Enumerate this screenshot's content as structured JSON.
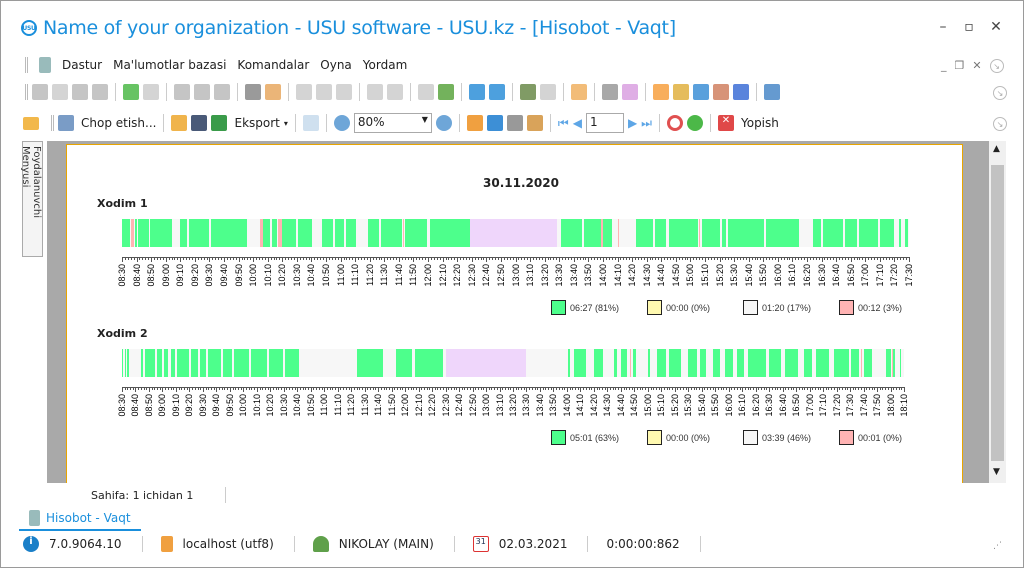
{
  "window": {
    "title": "Name of your organization - USU software - USU.kz - [Hisobot - Vaqt]",
    "logo": "USU"
  },
  "menu": {
    "items": [
      "Dastur",
      "Ma'lumotlar bazasi",
      "Komandalar",
      "Oyna",
      "Yordam"
    ]
  },
  "toolbar1": {
    "icons": [
      "new-record-icon",
      "copy-icon",
      "edit-icon",
      "delete-icon",
      "|",
      "refresh-icon",
      "search-icon",
      "|",
      "filter-icon",
      "filter-clear-icon",
      "filter-check-icon",
      "|",
      "flag-icon",
      "image-icon",
      "|",
      "columns-icon",
      "expand-icon",
      "collapse-icon",
      "|",
      "add-column-icon",
      "note-icon",
      "|",
      "export-table-icon",
      "excel-export-icon",
      "|",
      "close-window-icon",
      "close-all-windows-icon",
      "|",
      "exit-icon",
      "circle-arrow-icon",
      "|",
      "location-pin-icon",
      "|",
      "gear-icon",
      "color-wheel-icon",
      "|",
      "rss-icon",
      "lock-icon",
      "user-key-icon",
      "users-icon",
      "plugin-icon",
      "|",
      "info-icon"
    ]
  },
  "toolbar2": {
    "print_label": "Chop etish...",
    "export_label": "Eksport",
    "zoom_value": "80%",
    "page_value": "1",
    "close_label": "Yopish"
  },
  "side_tab": "Foydalanuvchi Menyusi",
  "report": {
    "date": "30.11.2020",
    "legend_colors": {
      "work": "#4dff8c",
      "idle": "#fff9b0",
      "absent": "#f7f7f7",
      "other": "#ffb3b3",
      "break": "#efd6fb"
    },
    "employees": [
      {
        "name": "Xodim 1",
        "range": [
          "08:30",
          "17:30"
        ],
        "ticks": [
          "08:30",
          "08:40",
          "08:50",
          "09:00",
          "09:10",
          "09:20",
          "09:30",
          "09:40",
          "09:50",
          "10:00",
          "10:10",
          "10:20",
          "10:30",
          "10:40",
          "10:50",
          "11:00",
          "11:10",
          "11:20",
          "11:30",
          "11:40",
          "11:50",
          "12:00",
          "12:10",
          "12:20",
          "12:30",
          "12:40",
          "12:50",
          "13:00",
          "13:10",
          "13:20",
          "13:30",
          "13:40",
          "13:50",
          "14:00",
          "14:10",
          "14:20",
          "14:30",
          "14:40",
          "14:50",
          "15:00",
          "15:10",
          "15:20",
          "15:30",
          "15:40",
          "15:50",
          "16:00",
          "16:10",
          "16:20",
          "16:30",
          "16:40",
          "16:50",
          "17:00",
          "17:10",
          "17:20",
          "17:30"
        ],
        "segments": [
          [
            "08:30",
            "08:33",
            "work"
          ],
          [
            "08:33",
            "08:36",
            "work"
          ],
          [
            "08:36",
            "08:39",
            "other"
          ],
          [
            "08:39",
            "08:41",
            "work"
          ],
          [
            "08:41",
            "08:49",
            "work"
          ],
          [
            "08:49",
            "09:05",
            "work"
          ],
          [
            "09:10",
            "09:15",
            "work"
          ],
          [
            "09:16",
            "09:30",
            "work"
          ],
          [
            "09:31",
            "09:56",
            "work"
          ],
          [
            "10:05",
            "10:07",
            "other"
          ],
          [
            "10:07",
            "10:12",
            "work"
          ],
          [
            "10:13",
            "10:17",
            "work"
          ],
          [
            "10:17",
            "10:20",
            "other"
          ],
          [
            "10:20",
            "10:30",
            "work"
          ],
          [
            "10:31",
            "10:41",
            "work"
          ],
          [
            "10:47",
            "10:55",
            "work"
          ],
          [
            "10:56",
            "11:03",
            "work"
          ],
          [
            "11:04",
            "11:11",
            "work"
          ],
          [
            "11:19",
            "11:27",
            "work"
          ],
          [
            "11:28",
            "11:43",
            "work"
          ],
          [
            "11:43",
            "11:44",
            "other"
          ],
          [
            "11:44",
            "12:00",
            "work"
          ],
          [
            "12:01",
            "12:29",
            "work"
          ],
          [
            "12:29",
            "13:29",
            "break"
          ],
          [
            "13:31",
            "13:46",
            "work"
          ],
          [
            "13:47",
            "13:59",
            "work"
          ],
          [
            "13:59",
            "14:00",
            "other"
          ],
          [
            "14:00",
            "14:07",
            "work"
          ],
          [
            "14:10",
            "14:11",
            "other"
          ],
          [
            "14:23",
            "14:35",
            "work"
          ],
          [
            "14:36",
            "14:44",
            "work"
          ],
          [
            "14:45",
            "15:06",
            "work"
          ],
          [
            "15:06",
            "15:07",
            "other"
          ],
          [
            "15:08",
            "15:21",
            "work"
          ],
          [
            "15:22",
            "15:25",
            "work"
          ],
          [
            "15:26",
            "15:51",
            "work"
          ],
          [
            "15:52",
            "16:15",
            "work"
          ],
          [
            "16:24",
            "16:30",
            "work"
          ],
          [
            "16:31",
            "16:45",
            "work"
          ],
          [
            "16:46",
            "16:55",
            "work"
          ],
          [
            "16:56",
            "17:09",
            "work"
          ],
          [
            "17:10",
            "17:20",
            "work"
          ],
          [
            "17:23",
            "17:25",
            "work"
          ],
          [
            "17:27",
            "17:30",
            "work"
          ]
        ],
        "legend": [
          "06:27 (81%)",
          "00:00 (0%)",
          "01:20 (17%)",
          "00:12 (3%)"
        ]
      },
      {
        "name": "Xodim 2",
        "range": [
          "08:30",
          "18:10"
        ],
        "ticks": [
          "08:30",
          "08:40",
          "08:50",
          "09:00",
          "09:10",
          "09:20",
          "09:30",
          "09:40",
          "09:50",
          "10:00",
          "10:10",
          "10:20",
          "10:30",
          "10:40",
          "10:50",
          "11:00",
          "11:10",
          "11:20",
          "11:30",
          "11:40",
          "11:50",
          "12:00",
          "12:10",
          "12:20",
          "12:30",
          "12:40",
          "12:50",
          "13:00",
          "13:10",
          "13:20",
          "13:30",
          "13:40",
          "13:50",
          "14:00",
          "14:10",
          "14:20",
          "14:30",
          "14:40",
          "14:50",
          "15:00",
          "15:10",
          "15:20",
          "15:30",
          "15:40",
          "15:50",
          "16:00",
          "16:10",
          "16:20",
          "16:30",
          "16:40",
          "16:50",
          "17:00",
          "17:10",
          "17:20",
          "17:30",
          "17:40",
          "17:50",
          "18:00",
          "18:10"
        ],
        "segments": [
          [
            "08:30",
            "08:31",
            "work"
          ],
          [
            "08:32",
            "08:33",
            "work"
          ],
          [
            "08:34",
            "08:36",
            "work"
          ],
          [
            "08:44",
            "08:46",
            "work"
          ],
          [
            "08:47",
            "08:55",
            "work"
          ],
          [
            "08:56",
            "09:00",
            "work"
          ],
          [
            "09:01",
            "09:05",
            "work"
          ],
          [
            "09:06",
            "09:10",
            "work"
          ],
          [
            "09:11",
            "09:20",
            "work"
          ],
          [
            "09:21",
            "09:27",
            "work"
          ],
          [
            "09:28",
            "09:33",
            "work"
          ],
          [
            "09:34",
            "09:44",
            "work"
          ],
          [
            "09:45",
            "09:52",
            "work"
          ],
          [
            "09:53",
            "10:05",
            "work"
          ],
          [
            "10:06",
            "10:18",
            "work"
          ],
          [
            "10:19",
            "10:30",
            "work"
          ],
          [
            "10:31",
            "10:42",
            "work"
          ],
          [
            "11:24",
            "11:44",
            "work"
          ],
          [
            "11:53",
            "12:06",
            "work"
          ],
          [
            "12:07",
            "12:29",
            "work"
          ],
          [
            "12:30",
            "13:30",
            "break"
          ],
          [
            "14:01",
            "14:03",
            "work"
          ],
          [
            "14:05",
            "14:15",
            "work"
          ],
          [
            "14:20",
            "14:27",
            "work"
          ],
          [
            "14:35",
            "14:38",
            "work"
          ],
          [
            "14:40",
            "14:45",
            "work"
          ],
          [
            "14:47",
            "14:48",
            "other"
          ],
          [
            "14:49",
            "14:52",
            "work"
          ],
          [
            "15:00",
            "15:02",
            "work"
          ],
          [
            "15:07",
            "15:14",
            "work"
          ],
          [
            "15:16",
            "15:25",
            "work"
          ],
          [
            "15:30",
            "15:37",
            "work"
          ],
          [
            "15:39",
            "15:44",
            "work"
          ],
          [
            "15:48",
            "15:54",
            "work"
          ],
          [
            "15:57",
            "16:04",
            "work"
          ],
          [
            "16:06",
            "16:12",
            "work"
          ],
          [
            "16:14",
            "16:28",
            "work"
          ],
          [
            "16:30",
            "16:39",
            "work"
          ],
          [
            "16:42",
            "16:52",
            "work"
          ],
          [
            "16:56",
            "17:02",
            "work"
          ],
          [
            "17:05",
            "17:15",
            "work"
          ],
          [
            "17:18",
            "17:30",
            "work"
          ],
          [
            "17:31",
            "17:37",
            "work"
          ],
          [
            "17:38",
            "17:39",
            "other"
          ],
          [
            "17:40",
            "17:47",
            "work"
          ],
          [
            "17:57",
            "18:01",
            "work"
          ],
          [
            "18:01",
            "18:02",
            "other"
          ],
          [
            "18:02",
            "18:04",
            "work"
          ],
          [
            "18:07",
            "18:08",
            "work"
          ]
        ],
        "legend": [
          "05:01 (63%)",
          "00:00 (0%)",
          "03:39 (46%)",
          "00:01 (0%)"
        ]
      }
    ]
  },
  "page_info": "Sahifa: 1 ichidan 1",
  "doc_tab": "Hisobot - Vaqt",
  "status": {
    "version": "7.0.9064.10",
    "server": "localhost (utf8)",
    "user": "NIKOLAY (MAIN)",
    "date": "02.03.2021",
    "timer": "0:00:00:862",
    "calendar_day": "31"
  }
}
